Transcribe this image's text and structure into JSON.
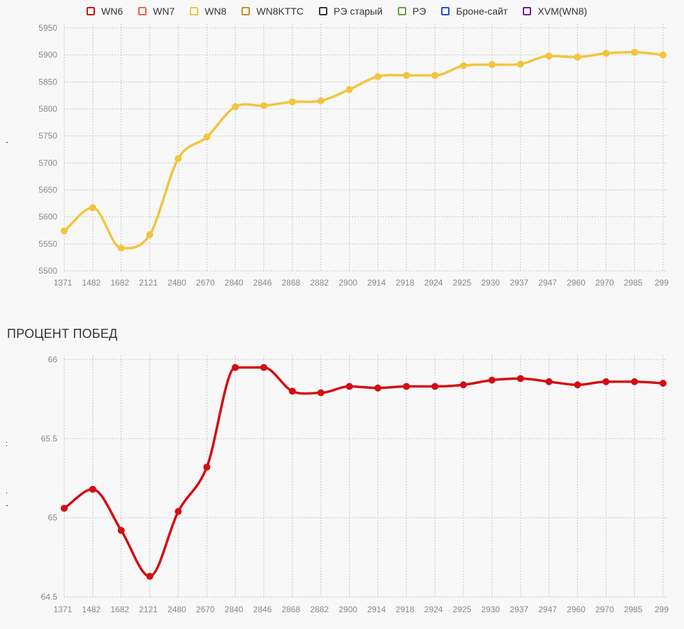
{
  "legend": [
    {
      "label": "WN6",
      "color": "#d40d12"
    },
    {
      "label": "WN7",
      "color": "#e8624d"
    },
    {
      "label": "WN8",
      "color": "#f2c53d"
    },
    {
      "label": "WN8KTTC",
      "color": "#cc8a1a"
    },
    {
      "label": "РЭ старый",
      "color": "#333333"
    },
    {
      "label": "РЭ",
      "color": "#6aa03c"
    },
    {
      "label": "Броне-сайт",
      "color": "#1f4fd1"
    },
    {
      "label": "XVM(WN8)",
      "color": "#6b1a9a"
    }
  ],
  "section2": {
    "title": "ПРОЦЕНТ ПОБЕД"
  },
  "side_marks": [
    "-",
    ":",
    ".",
    "-"
  ],
  "chart_data": [
    {
      "type": "line",
      "x": [
        "1371",
        "1482",
        "1682",
        "2121",
        "2480",
        "2670",
        "2840",
        "2846",
        "2868",
        "2882",
        "2900",
        "2914",
        "2918",
        "2924",
        "2925",
        "2930",
        "2937",
        "2947",
        "2960",
        "2970",
        "2985",
        "299"
      ],
      "series": [
        {
          "name": "WN8",
          "color": "#f2c53d",
          "values": [
            5574,
            5617,
            5542,
            5567,
            5708,
            5748,
            5804,
            5806,
            5813,
            5815,
            5836,
            5860,
            5862,
            5862,
            5880,
            5882,
            5883,
            5898,
            5896,
            5903,
            5905,
            5900
          ]
        }
      ],
      "ylim": [
        5500,
        5950
      ],
      "yticks": [
        "5950",
        "5900",
        "5850",
        "5800",
        "5750",
        "5700",
        "5650",
        "5600",
        "5550",
        "5500"
      ],
      "grid": true
    },
    {
      "type": "line",
      "title": "ПРОЦЕНТ ПОБЕД",
      "x": [
        "1371",
        "1482",
        "1682",
        "2121",
        "2480",
        "2670",
        "2840",
        "2846",
        "2868",
        "2882",
        "2900",
        "2914",
        "2918",
        "2924",
        "2925",
        "2930",
        "2937",
        "2947",
        "2960",
        "2970",
        "2985",
        "299"
      ],
      "series": [
        {
          "name": "WN6",
          "color": "#d40d12",
          "values": [
            65.06,
            65.18,
            64.92,
            64.63,
            65.04,
            65.32,
            65.95,
            65.95,
            65.8,
            65.79,
            65.83,
            65.82,
            65.83,
            65.83,
            65.84,
            65.87,
            65.88,
            65.86,
            65.84,
            65.86,
            65.86,
            65.85
          ]
        }
      ],
      "ylim": [
        64.5,
        66
      ],
      "yticks": [
        "66",
        "65.5",
        "65",
        "64.5"
      ],
      "grid": true
    }
  ]
}
